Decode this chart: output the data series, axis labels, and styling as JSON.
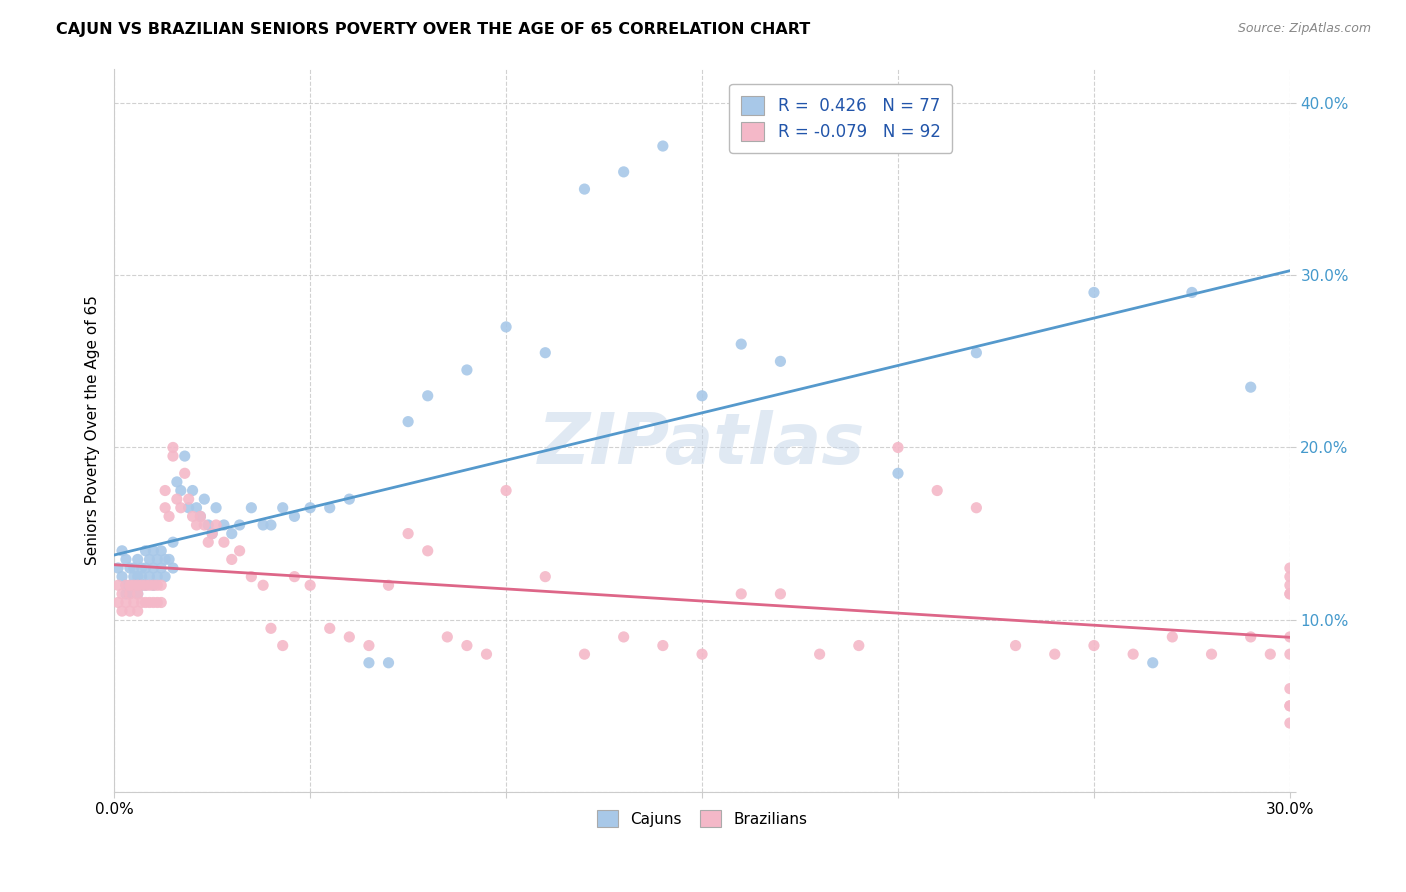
{
  "title": "CAJUN VS BRAZILIAN SENIORS POVERTY OVER THE AGE OF 65 CORRELATION CHART",
  "source": "Source: ZipAtlas.com",
  "ylabel": "Seniors Poverty Over the Age of 65",
  "xlim": [
    0.0,
    0.3
  ],
  "ylim": [
    0.0,
    0.42
  ],
  "xticks": [
    0.0,
    0.05,
    0.1,
    0.15,
    0.2,
    0.25,
    0.3
  ],
  "yticks": [
    0.0,
    0.1,
    0.2,
    0.3,
    0.4
  ],
  "xtick_labels": [
    "0.0%",
    "",
    "",
    "",
    "",
    "",
    "30.0%"
  ],
  "ytick_labels_right": [
    "",
    "10.0%",
    "20.0%",
    "30.0%",
    "40.0%"
  ],
  "cajun_R": 0.426,
  "cajun_N": 77,
  "brazilian_R": -0.079,
  "brazilian_N": 92,
  "cajun_color": "#A8C8E8",
  "brazilian_color": "#F4B8C8",
  "cajun_line_color": "#5599CC",
  "brazilian_line_color": "#DD6688",
  "legend_label_cajun": "Cajuns",
  "legend_label_brazilian": "Brazilians",
  "watermark": "ZIPatlas",
  "background_color": "#ffffff",
  "grid_color": "#cccccc",
  "cajun_x": [
    0.001,
    0.002,
    0.002,
    0.003,
    0.003,
    0.003,
    0.004,
    0.004,
    0.004,
    0.005,
    0.005,
    0.005,
    0.006,
    0.006,
    0.006,
    0.006,
    0.007,
    0.007,
    0.007,
    0.008,
    0.008,
    0.008,
    0.009,
    0.009,
    0.01,
    0.01,
    0.01,
    0.011,
    0.011,
    0.012,
    0.012,
    0.013,
    0.013,
    0.014,
    0.015,
    0.015,
    0.016,
    0.017,
    0.018,
    0.019,
    0.02,
    0.021,
    0.022,
    0.023,
    0.024,
    0.025,
    0.026,
    0.028,
    0.03,
    0.032,
    0.035,
    0.038,
    0.04,
    0.043,
    0.046,
    0.05,
    0.055,
    0.06,
    0.065,
    0.07,
    0.075,
    0.08,
    0.09,
    0.1,
    0.11,
    0.12,
    0.13,
    0.14,
    0.15,
    0.16,
    0.17,
    0.2,
    0.22,
    0.25,
    0.265,
    0.275,
    0.29
  ],
  "cajun_y": [
    0.13,
    0.14,
    0.125,
    0.135,
    0.12,
    0.115,
    0.13,
    0.12,
    0.115,
    0.13,
    0.125,
    0.12,
    0.135,
    0.125,
    0.12,
    0.115,
    0.13,
    0.125,
    0.12,
    0.14,
    0.13,
    0.12,
    0.135,
    0.125,
    0.14,
    0.13,
    0.12,
    0.135,
    0.125,
    0.14,
    0.13,
    0.135,
    0.125,
    0.135,
    0.145,
    0.13,
    0.18,
    0.175,
    0.195,
    0.165,
    0.175,
    0.165,
    0.16,
    0.17,
    0.155,
    0.15,
    0.165,
    0.155,
    0.15,
    0.155,
    0.165,
    0.155,
    0.155,
    0.165,
    0.16,
    0.165,
    0.165,
    0.17,
    0.075,
    0.075,
    0.215,
    0.23,
    0.245,
    0.27,
    0.255,
    0.35,
    0.36,
    0.375,
    0.23,
    0.26,
    0.25,
    0.185,
    0.255,
    0.29,
    0.075,
    0.29,
    0.235
  ],
  "brazilian_x": [
    0.001,
    0.001,
    0.002,
    0.002,
    0.003,
    0.003,
    0.004,
    0.004,
    0.004,
    0.005,
    0.005,
    0.006,
    0.006,
    0.006,
    0.007,
    0.007,
    0.008,
    0.008,
    0.009,
    0.009,
    0.01,
    0.01,
    0.011,
    0.011,
    0.012,
    0.012,
    0.013,
    0.013,
    0.014,
    0.015,
    0.015,
    0.016,
    0.017,
    0.018,
    0.019,
    0.02,
    0.021,
    0.022,
    0.023,
    0.024,
    0.025,
    0.026,
    0.028,
    0.03,
    0.032,
    0.035,
    0.038,
    0.04,
    0.043,
    0.046,
    0.05,
    0.055,
    0.06,
    0.065,
    0.07,
    0.075,
    0.08,
    0.085,
    0.09,
    0.095,
    0.1,
    0.11,
    0.12,
    0.13,
    0.14,
    0.15,
    0.16,
    0.17,
    0.18,
    0.19,
    0.2,
    0.21,
    0.22,
    0.23,
    0.24,
    0.25,
    0.26,
    0.27,
    0.28,
    0.29,
    0.295,
    0.3,
    0.3,
    0.3,
    0.3,
    0.3,
    0.3,
    0.3,
    0.3,
    0.3,
    0.3,
    0.3
  ],
  "brazilian_y": [
    0.12,
    0.11,
    0.115,
    0.105,
    0.12,
    0.11,
    0.12,
    0.115,
    0.105,
    0.12,
    0.11,
    0.12,
    0.115,
    0.105,
    0.12,
    0.11,
    0.12,
    0.11,
    0.12,
    0.11,
    0.12,
    0.11,
    0.12,
    0.11,
    0.12,
    0.11,
    0.175,
    0.165,
    0.16,
    0.2,
    0.195,
    0.17,
    0.165,
    0.185,
    0.17,
    0.16,
    0.155,
    0.16,
    0.155,
    0.145,
    0.15,
    0.155,
    0.145,
    0.135,
    0.14,
    0.125,
    0.12,
    0.095,
    0.085,
    0.125,
    0.12,
    0.095,
    0.09,
    0.085,
    0.12,
    0.15,
    0.14,
    0.09,
    0.085,
    0.08,
    0.175,
    0.125,
    0.08,
    0.09,
    0.085,
    0.08,
    0.115,
    0.115,
    0.08,
    0.085,
    0.2,
    0.175,
    0.165,
    0.085,
    0.08,
    0.085,
    0.08,
    0.09,
    0.08,
    0.09,
    0.08,
    0.115,
    0.125,
    0.12,
    0.115,
    0.13,
    0.08,
    0.09,
    0.05,
    0.06,
    0.05,
    0.04
  ]
}
